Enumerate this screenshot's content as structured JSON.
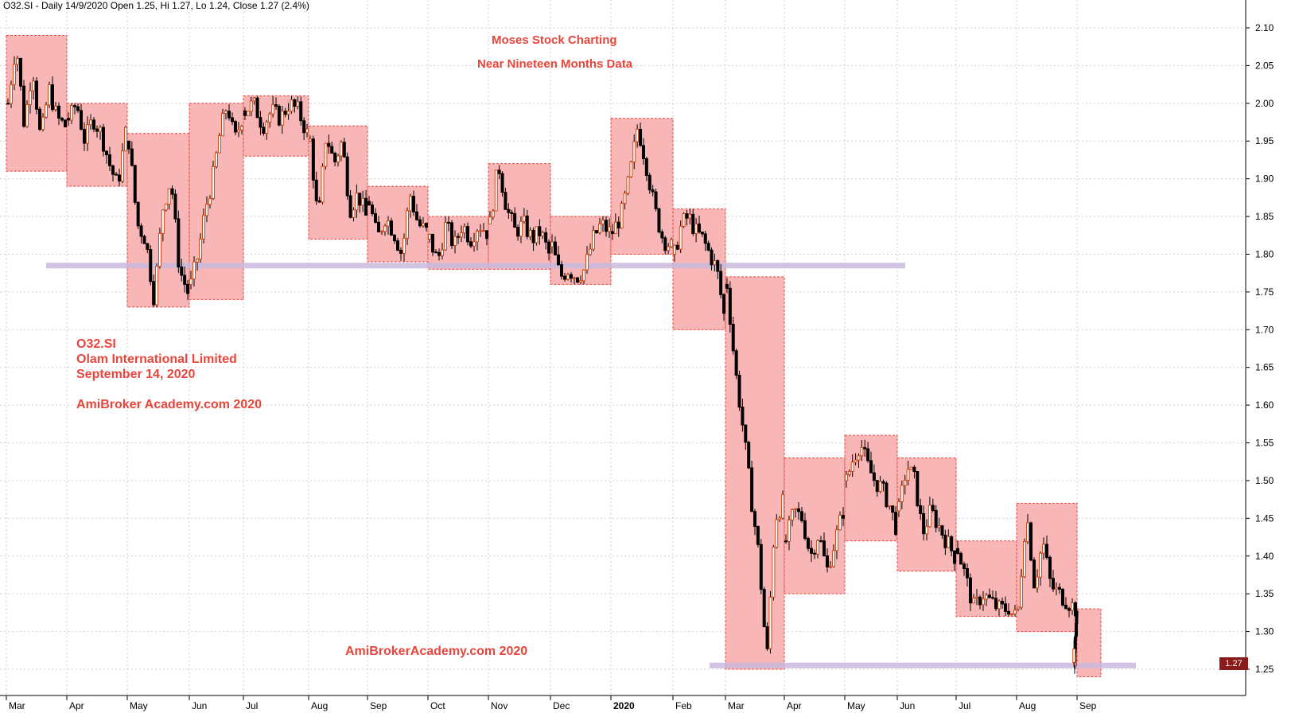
{
  "header": {
    "info": "O32.SI - Daily 14/9/2020 Open 1.25, Hi 1.27, Lo 1.24, Close 1.27 (2.4%)"
  },
  "title": {
    "line1": "Moses Stock Charting",
    "line2": "Near Nineteen Months Data"
  },
  "labels": {
    "ticker": "O32.SI",
    "company": "Olam International Limited",
    "date": "September 14, 2020",
    "site_top": "AmiBroker Academy.com  2020",
    "site_bottom": "AmiBrokerAcademy.com  2020"
  },
  "last_price": "1.27",
  "colors": {
    "box_fill": "#f7a9a9",
    "box_border": "#e8453c",
    "support": "#c9b8dc",
    "candle": "#000000",
    "text": "#e8453c",
    "badge": "#8b1a1a"
  },
  "chart_data": {
    "type": "candlestick",
    "y_ticks": [
      "2.10",
      "2.05",
      "2.00",
      "1.95",
      "1.90",
      "1.85",
      "1.80",
      "1.75",
      "1.70",
      "1.65",
      "1.60",
      "1.55",
      "1.50",
      "1.45",
      "1.40",
      "1.35",
      "1.30",
      "1.25"
    ],
    "ylim": [
      1.22,
      2.12
    ],
    "x_months": [
      "Mar",
      "Apr",
      "May",
      "Jun",
      "Jul",
      "Aug",
      "Sep",
      "Oct",
      "Nov",
      "Dec",
      "2020",
      "Feb",
      "Mar",
      "Apr",
      "May",
      "Jun",
      "Jul",
      "Aug",
      "Sep"
    ],
    "month_boxes": [
      {
        "month": "Mar 2019",
        "high": 2.09,
        "low": 1.91
      },
      {
        "month": "Apr 2019",
        "high": 2.0,
        "low": 1.89
      },
      {
        "month": "May 2019",
        "high": 1.96,
        "low": 1.73
      },
      {
        "month": "Jun 2019",
        "high": 2.0,
        "low": 1.74
      },
      {
        "month": "Jul 2019",
        "high": 2.01,
        "low": 1.93
      },
      {
        "month": "Aug 2019",
        "high": 1.97,
        "low": 1.82
      },
      {
        "month": "Sep 2019",
        "high": 1.89,
        "low": 1.79
      },
      {
        "month": "Oct 2019",
        "high": 1.85,
        "low": 1.78
      },
      {
        "month": "Nov 2019",
        "high": 1.92,
        "low": 1.78
      },
      {
        "month": "Dec 2019",
        "high": 1.85,
        "low": 1.76
      },
      {
        "month": "Jan 2020",
        "high": 1.98,
        "low": 1.8
      },
      {
        "month": "Feb 2020",
        "high": 1.86,
        "low": 1.7
      },
      {
        "month": "Mar 2020",
        "high": 1.77,
        "low": 1.25
      },
      {
        "month": "Apr 2020",
        "high": 1.53,
        "low": 1.35
      },
      {
        "month": "May 2020",
        "high": 1.56,
        "low": 1.42
      },
      {
        "month": "Jun 2020",
        "high": 1.53,
        "low": 1.38
      },
      {
        "month": "Jul 2020",
        "high": 1.42,
        "low": 1.32
      },
      {
        "month": "Aug 2020",
        "high": 1.47,
        "low": 1.3
      },
      {
        "month": "Sep 2020",
        "high": 1.33,
        "low": 1.24
      }
    ],
    "support_lines": [
      {
        "value": 1.785,
        "from": "Mar 2019",
        "to": "Jun 2020"
      },
      {
        "value": 1.255,
        "from": "Mar 2020",
        "to": "Sep 2020"
      }
    ],
    "monthly_path": [
      [
        2.0,
        2.08,
        1.97,
        2.05,
        1.95,
        2.02,
        1.98,
        1.97
      ],
      [
        1.98,
        2.0,
        1.95,
        1.98,
        1.96,
        1.92,
        1.89,
        1.96
      ],
      [
        1.95,
        1.84,
        1.82,
        1.74,
        1.86,
        1.9,
        1.78,
        1.75
      ],
      [
        1.76,
        1.8,
        1.86,
        1.9,
        1.96,
        2.0,
        1.95,
        1.98
      ],
      [
        1.99,
        2.0,
        1.97,
        1.99,
        1.98,
        2.0,
        1.99,
        1.96
      ],
      [
        1.95,
        1.84,
        1.96,
        1.92,
        1.95,
        1.86,
        1.88,
        1.85
      ],
      [
        1.87,
        1.82,
        1.85,
        1.83,
        1.8,
        1.88,
        1.84,
        1.83
      ],
      [
        1.82,
        1.79,
        1.84,
        1.81,
        1.84,
        1.82,
        1.84,
        1.83
      ],
      [
        1.84,
        1.92,
        1.86,
        1.83,
        1.84,
        1.82,
        1.83,
        1.8
      ],
      [
        1.81,
        1.77,
        1.78,
        1.77,
        1.78,
        1.82,
        1.84,
        1.83
      ],
      [
        1.83,
        1.85,
        1.9,
        1.97,
        1.92,
        1.86,
        1.82,
        1.81
      ],
      [
        1.8,
        1.84,
        1.85,
        1.83,
        1.82,
        1.8,
        1.78,
        1.72
      ],
      [
        1.76,
        1.65,
        1.57,
        1.48,
        1.4,
        1.26,
        1.45,
        1.47
      ],
      [
        1.42,
        1.46,
        1.45,
        1.4,
        1.43,
        1.38,
        1.42,
        1.46
      ],
      [
        1.5,
        1.53,
        1.55,
        1.52,
        1.5,
        1.49,
        1.47,
        1.44
      ],
      [
        1.46,
        1.52,
        1.5,
        1.43,
        1.46,
        1.44,
        1.42,
        1.4
      ],
      [
        1.41,
        1.37,
        1.33,
        1.35,
        1.34,
        1.33,
        1.33,
        1.32
      ],
      [
        1.33,
        1.46,
        1.36,
        1.42,
        1.36,
        1.35,
        1.34,
        1.33
      ],
      [
        1.32,
        1.3,
        1.28,
        1.26,
        1.27
      ]
    ]
  }
}
